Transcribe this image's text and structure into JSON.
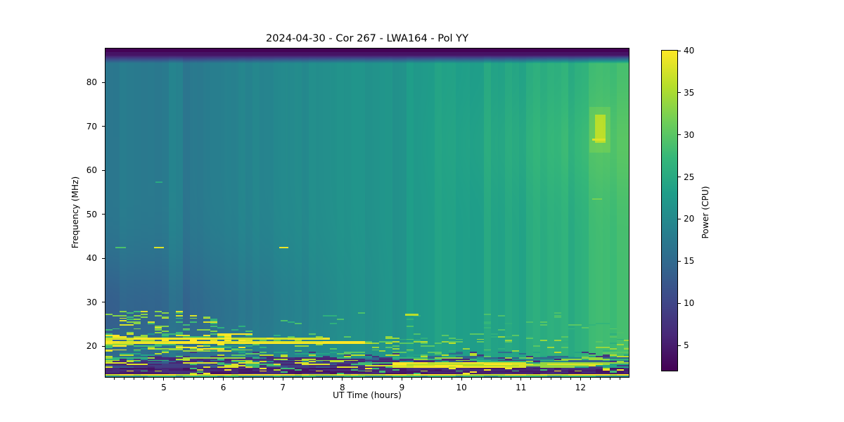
{
  "chart_data": {
    "type": "heatmap",
    "title": "2024-04-30 - Cor 267 - LWA164 - Pol YY",
    "xlabel": "UT Time (hours)",
    "ylabel": "Frequency (MHz)",
    "colorbar_label": "Power (CPU)",
    "x_range_hours": [
      4.02,
      12.81
    ],
    "y_range_mhz": [
      13.0,
      87.7
    ],
    "clim": [
      2,
      40
    ],
    "x_ticks": [
      5,
      6,
      7,
      8,
      9,
      10,
      11,
      12
    ],
    "x_minor_step_hours": 0.166667,
    "y_ticks": [
      20,
      30,
      40,
      50,
      60,
      70,
      80
    ],
    "colorbar_ticks": [
      5,
      10,
      15,
      20,
      25,
      30,
      35,
      40
    ],
    "colormap": "viridis",
    "colormap_stops": [
      "#440154",
      "#482878",
      "#3e4989",
      "#31688e",
      "#26828e",
      "#1f9e89",
      "#35b779",
      "#6ece58",
      "#b5de2b",
      "#fde725"
    ],
    "grid": false,
    "background_field": {
      "base_left_cpu": 17.6,
      "base_rise_cpu": 9.0,
      "rise_start_hour": 5.2,
      "rise_span_hours": 7.3,
      "low_freq_dip": {
        "amount": -3.8,
        "center_mhz": 28,
        "sigma_mhz": 13,
        "fade_end_hour": 9.0
      },
      "high_freq_boost": {
        "amount": 1.4,
        "center_mhz": 66,
        "sigma_mhz": 11,
        "start_hour": 9.0,
        "span_hours": 3.0
      },
      "top_band": {
        "start_mhz": 84.3,
        "full_mhz": 86.2,
        "value": 4.0
      },
      "top_edge": {
        "start_mhz": 86.9,
        "value": 2.2
      }
    },
    "time_stripes": {
      "bin_hours": 0.1177,
      "noise_amp_left": 0.5,
      "noise_amp_right": 1.1,
      "right_start_hour": 8.8,
      "features": [
        {
          "t": [
            5.12,
            5.3
          ],
          "add": 1.4
        },
        {
          "t": [
            5.3,
            5.62
          ],
          "add": -0.7
        },
        {
          "t": [
            6.9,
            7.08
          ],
          "add": 0.5
        },
        {
          "t": [
            12.18,
            12.45
          ],
          "add": 0.9
        },
        {
          "t": [
            12.55,
            12.81
          ],
          "add": 1.0
        }
      ]
    },
    "rfi_bands": [
      {
        "f": [
          17.3,
          18.7
        ],
        "t": [
          4.02,
          12.81
        ],
        "density": 0.5,
        "persist": 0.6,
        "choices": [
          24,
          30,
          36,
          15,
          8
        ]
      },
      {
        "f": [
          18.7,
          22.6
        ],
        "t": [
          4.02,
          6.45
        ],
        "density": 0.55,
        "persist": 0.6,
        "choices": [
          34,
          38,
          40,
          28,
          22
        ]
      },
      {
        "f": [
          18.7,
          22.6
        ],
        "t": [
          6.45,
          12.81
        ],
        "density": 0.1,
        "persist": 0.5,
        "choices": [
          26,
          30,
          34
        ]
      },
      {
        "f": [
          22.6,
          27.9
        ],
        "t": [
          4.02,
          5.9
        ],
        "density": 0.22,
        "persist": 0.45,
        "choices": [
          28,
          33,
          38
        ]
      },
      {
        "f": [
          22.6,
          27.9
        ],
        "t": [
          5.9,
          12.81
        ],
        "density": 0.025,
        "persist": 0.3,
        "choices": [
          26,
          29
        ]
      },
      {
        "f": [
          23.8,
          25.3
        ],
        "t": [
          10.3,
          12.81
        ],
        "density": 0.07,
        "persist": 0.5,
        "choices": [
          27,
          30
        ]
      },
      {
        "f": [
          20.7,
          21.05
        ],
        "t": [
          4.02,
          8.3
        ],
        "density": 1,
        "persist": 0.7,
        "choices": [
          38,
          40
        ]
      },
      {
        "f": [
          21.6,
          21.95
        ],
        "t": [
          4.02,
          7.7
        ],
        "density": 1,
        "persist": 0.7,
        "choices": [
          37,
          40
        ]
      },
      {
        "f": [
          20.7,
          21.05
        ],
        "t": [
          8.3,
          10.2
        ],
        "density": 0.35,
        "persist": 0.5,
        "choices": [
          30,
          36
        ]
      },
      {
        "f": [
          16.1,
          17.3
        ],
        "t": [
          4.02,
          12.81
        ],
        "density": 0.95,
        "persist": 0.55,
        "choices": [
          14,
          20,
          27,
          34,
          8,
          6
        ]
      },
      {
        "f": [
          16.35,
          17.0
        ],
        "t": [
          4.02,
          8.4
        ],
        "density": 0.6,
        "persist": 0.6,
        "choices": [
          6,
          8,
          36
        ]
      },
      {
        "f": [
          15.1,
          16.1
        ],
        "t": [
          4.02,
          8.9
        ],
        "density": 1,
        "persist": 0.55,
        "choices": [
          6,
          9,
          28,
          38,
          13
        ]
      },
      {
        "f": [
          15.1,
          16.1
        ],
        "t": [
          8.9,
          11.15
        ],
        "density": 1,
        "persist": 0.6,
        "choices": [
          38,
          40,
          36
        ]
      },
      {
        "f": [
          15.1,
          16.1
        ],
        "t": [
          11.15,
          12.81
        ],
        "density": 1,
        "persist": 0.55,
        "choices": [
          9,
          24,
          34,
          38
        ]
      },
      {
        "f": [
          13.55,
          15.1
        ],
        "t": [
          4.02,
          12.81
        ],
        "density": 1,
        "persist": 0.6,
        "choices": [
          4,
          5,
          6,
          7
        ]
      },
      {
        "f": [
          13.55,
          15.1
        ],
        "t": [
          4.02,
          12.81
        ],
        "density": 0.13,
        "persist": 0.4,
        "choices": [
          28,
          36,
          40
        ]
      },
      {
        "f": [
          13.15,
          13.55
        ],
        "t": [
          4.02,
          12.81
        ],
        "density": 1,
        "persist": 0.5,
        "choices": [
          37,
          40
        ]
      },
      {
        "f": [
          13.0,
          13.15
        ],
        "t": [
          4.02,
          12.81
        ],
        "density": 1,
        "persist": 0.5,
        "choices": [
          20,
          26
        ]
      }
    ],
    "events": [
      {
        "f": [
          42.2,
          42.55
        ],
        "t": [
          4.19,
          4.36
        ],
        "set": 29
      },
      {
        "f": [
          42.2,
          42.55
        ],
        "t": [
          4.83,
          5.0
        ],
        "set": 38
      },
      {
        "f": [
          42.2,
          42.55
        ],
        "t": [
          6.94,
          7.09
        ],
        "set": 39
      },
      {
        "f": [
          57.2,
          57.5
        ],
        "t": [
          4.86,
          4.98
        ],
        "set": 25
      },
      {
        "f": [
          64.0,
          74.5
        ],
        "t": [
          12.15,
          12.5
        ],
        "add": 1.6
      },
      {
        "f": [
          66.2,
          72.6
        ],
        "t": [
          12.24,
          12.42
        ],
        "add": 5.0
      },
      {
        "f": [
          66.7,
          67.15
        ],
        "t": [
          12.2,
          12.42
        ],
        "set": 38
      },
      {
        "f": [
          53.3,
          53.7
        ],
        "t": [
          12.2,
          12.36
        ],
        "set": 32
      },
      {
        "f": [
          26.9,
          27.35
        ],
        "t": [
          9.05,
          9.28
        ],
        "set": 36
      }
    ]
  }
}
